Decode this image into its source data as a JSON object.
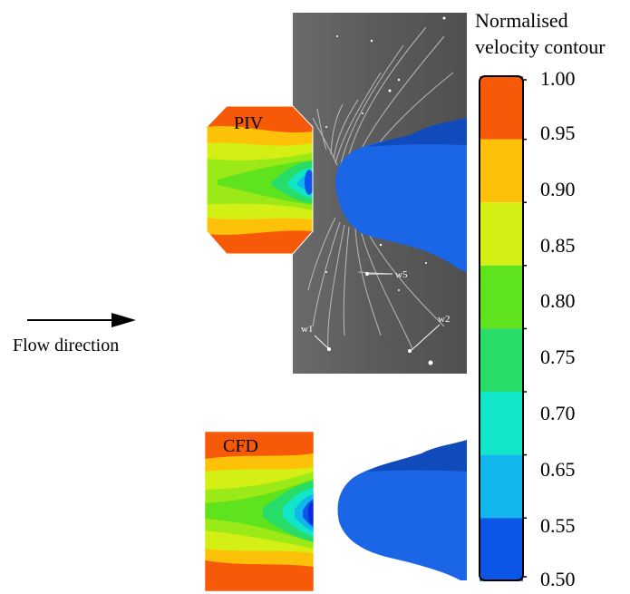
{
  "colorbar": {
    "title_line1": "Normalised",
    "title_line2": "velocity contour",
    "ticks": [
      "1.00",
      "0.95",
      "0.90",
      "0.85",
      "0.80",
      "0.75",
      "0.70",
      "0.65",
      "0.55",
      "0.50"
    ],
    "colors": [
      "#f65a08",
      "#fcc108",
      "#d4ef14",
      "#5fe31d",
      "#28dc6a",
      "#12e6c8",
      "#11b6ef",
      "#0b56e6",
      "#0b2be0"
    ]
  },
  "panels": {
    "piv_label": "PIV",
    "cfd_label": "CFD"
  },
  "flow": {
    "label": "Flow direction"
  },
  "wake_markers": {
    "w1": "w1",
    "w2": "w2",
    "w5": "w5"
  }
}
